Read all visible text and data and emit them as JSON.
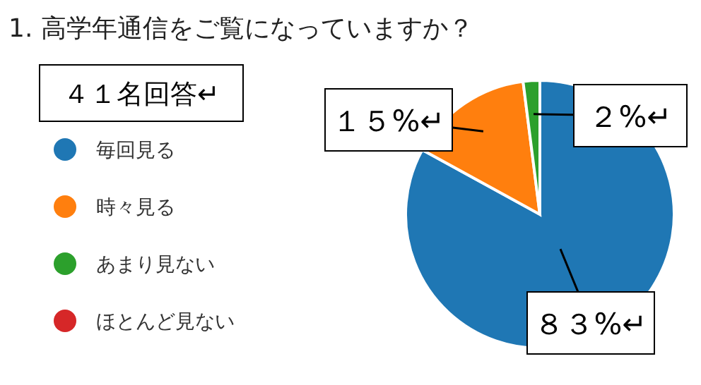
{
  "chart_data": {
    "type": "pie",
    "title": "1. 高学年通信をご覧になっていますか？",
    "annotations": [
      "４１名回答↵"
    ],
    "categories": [
      "毎回見る",
      "時々見る",
      "あまり見ない",
      "ほとんど見ない"
    ],
    "values": [
      83,
      15,
      2,
      0
    ],
    "colors": [
      "#1f77b4",
      "#ff7f0e",
      "#2ca02c",
      "#d62728"
    ],
    "value_labels": [
      "８３%↵",
      "１５%↵",
      "２%↵",
      null
    ],
    "legend": "left"
  }
}
